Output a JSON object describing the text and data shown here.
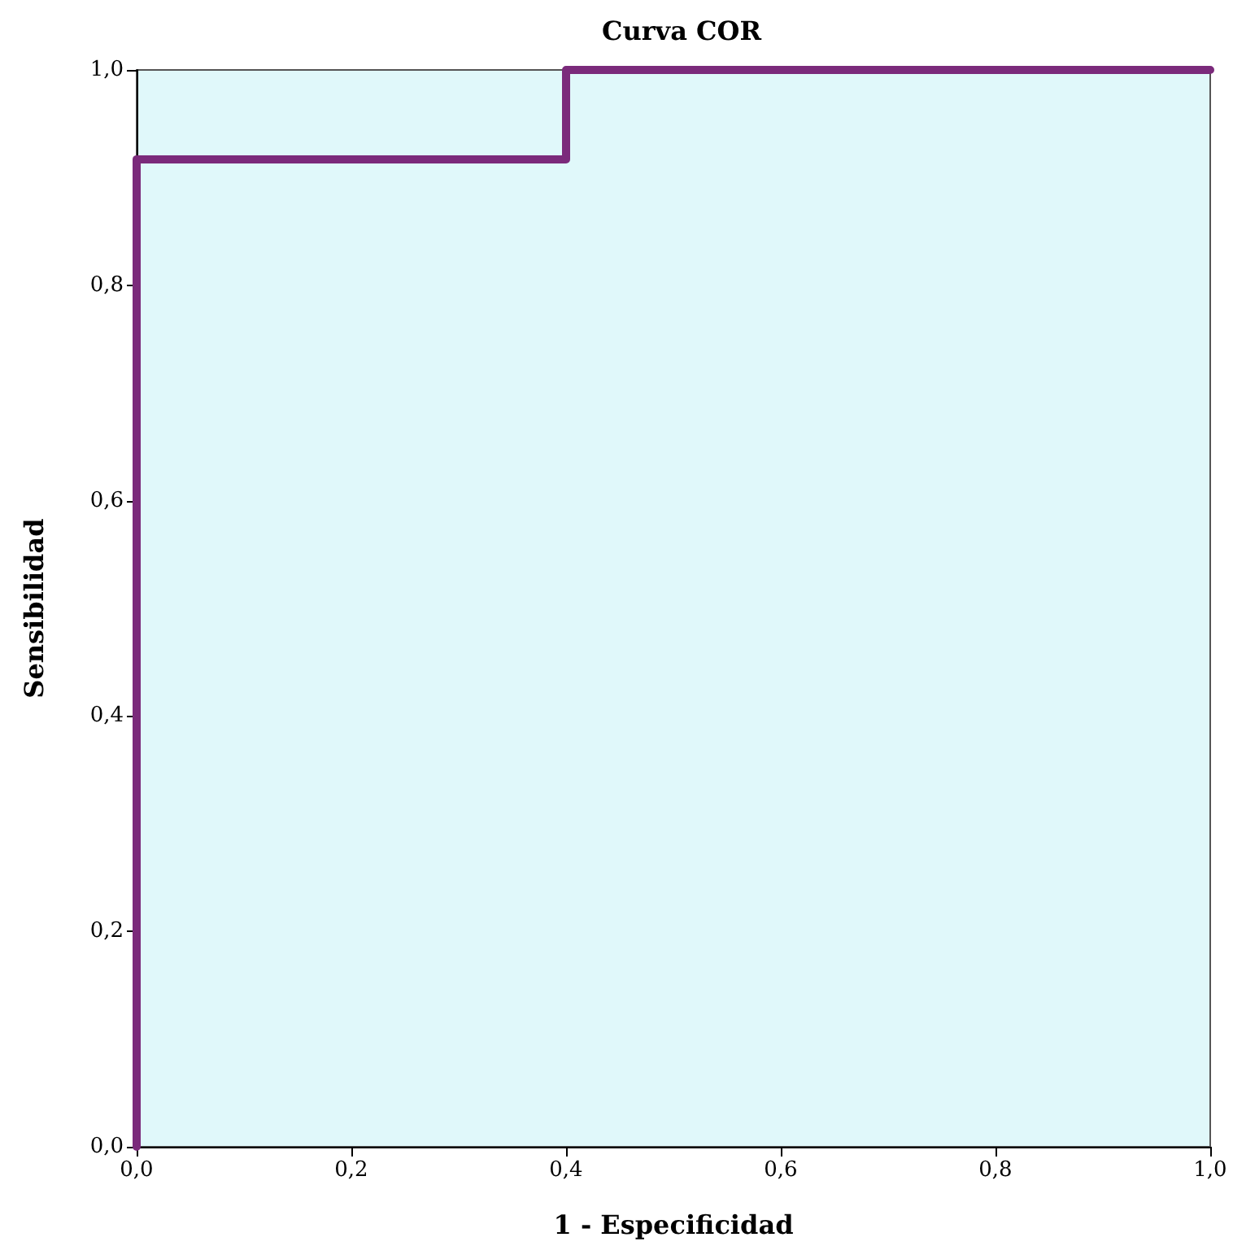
{
  "chart_data": {
    "type": "line",
    "title": "Curva COR",
    "xlabel": "1 - Especificidad",
    "ylabel": "Sensibilidad",
    "x": [
      0,
      0,
      0.4,
      0.4,
      1
    ],
    "series": [
      {
        "color": "#7b2a7b",
        "values": [
          0,
          0.917,
          0.917,
          1,
          1
        ]
      }
    ],
    "xlim": [
      0,
      1
    ],
    "ylim": [
      0,
      1
    ],
    "xticks": [
      {
        "value": 0,
        "label": "0,0"
      },
      {
        "value": 0.2,
        "label": "0,2"
      },
      {
        "value": 0.4,
        "label": "0,4"
      },
      {
        "value": 0.6,
        "label": "0,6"
      },
      {
        "value": 0.8,
        "label": "0,8"
      },
      {
        "value": 1,
        "label": "1,0"
      }
    ],
    "yticks": [
      {
        "value": 0,
        "label": "0,0"
      },
      {
        "value": 0.2,
        "label": "0,2"
      },
      {
        "value": 0.4,
        "label": "0,4"
      },
      {
        "value": 0.6,
        "label": "0,6"
      },
      {
        "value": 0.8,
        "label": "0,8"
      },
      {
        "value": 1,
        "label": "1,0"
      }
    ],
    "grid": false,
    "marker": "none",
    "line_style": "solid"
  }
}
